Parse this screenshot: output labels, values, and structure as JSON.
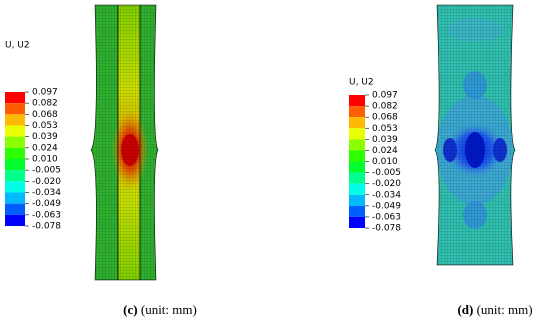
{
  "panels": [
    {
      "legend": {
        "title": "U, U2",
        "labels": [
          "0.097",
          "0.082",
          "0.068",
          "0.053",
          "0.039",
          "0.024",
          "0.010",
          "-0.005",
          "-0.020",
          "-0.034",
          "-0.049",
          "-0.063",
          "-0.078"
        ]
      },
      "caption": {
        "label": "(c)",
        "text": "(unit: mm)"
      }
    },
    {
      "legend": {
        "title": "U, U2",
        "labels": [
          "0.097",
          "0.082",
          "0.068",
          "0.053",
          "0.039",
          "0.024",
          "0.010",
          "-0.005",
          "-0.020",
          "-0.034",
          "-0.049",
          "-0.063",
          "-0.078"
        ]
      },
      "caption": {
        "label": "(d)",
        "text": "(unit: mm)"
      }
    }
  ]
}
